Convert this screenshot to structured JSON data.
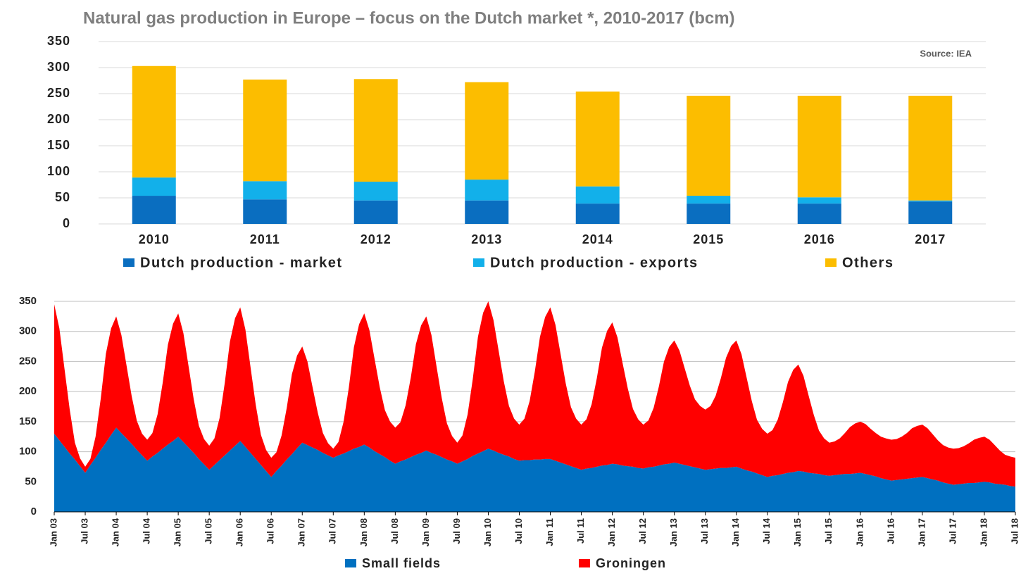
{
  "chart_data": [
    {
      "type": "bar",
      "stacked": true,
      "title": "Natural gas production in Europe – focus on the Dutch market *, 2010-2017 (bcm)",
      "annotation": "Source: IEA",
      "categories": [
        "2010",
        "2011",
        "2012",
        "2013",
        "2014",
        "2015",
        "2016",
        "2017"
      ],
      "series": [
        {
          "name": "Dutch production - market",
          "color": "#0a6ec0",
          "values": [
            54,
            47,
            45,
            45,
            39,
            39,
            39,
            43
          ]
        },
        {
          "name": "Dutch production - exports",
          "color": "#12b0ea",
          "values": [
            35,
            35,
            36,
            40,
            33,
            15,
            12,
            2
          ]
        },
        {
          "name": "Others",
          "color": "#fcbd00",
          "values": [
            214,
            195,
            197,
            187,
            182,
            192,
            195,
            201
          ]
        }
      ],
      "ylim": [
        0,
        350
      ],
      "yticks": [
        0,
        50,
        100,
        150,
        200,
        250,
        300,
        350
      ],
      "grid": true
    },
    {
      "type": "area",
      "stacked": true,
      "categories": [
        "Jan 03",
        null,
        null,
        null,
        null,
        null,
        "Jul 03",
        null,
        null,
        null,
        null,
        null,
        "Jan 04",
        null,
        null,
        null,
        null,
        null,
        "Jul 04",
        null,
        null,
        null,
        null,
        null,
        "Jan 05",
        null,
        null,
        null,
        null,
        null,
        "Jul 05",
        null,
        null,
        null,
        null,
        null,
        "Jan 06",
        null,
        null,
        null,
        null,
        null,
        "Jul 06",
        null,
        null,
        null,
        null,
        null,
        "Jan 07",
        null,
        null,
        null,
        null,
        null,
        "Jul 07",
        null,
        null,
        null,
        null,
        null,
        "Jan 08",
        null,
        null,
        null,
        null,
        null,
        "Jul 08",
        null,
        null,
        null,
        null,
        null,
        "Jan 09",
        null,
        null,
        null,
        null,
        null,
        "Jul 09",
        null,
        null,
        null,
        null,
        null,
        "Jan 10",
        null,
        null,
        null,
        null,
        null,
        "Jul 10",
        null,
        null,
        null,
        null,
        null,
        "Jan 11",
        null,
        null,
        null,
        null,
        null,
        "Jul 11",
        null,
        null,
        null,
        null,
        null,
        "Jan 12",
        null,
        null,
        null,
        null,
        null,
        "Jul 12",
        null,
        null,
        null,
        null,
        null,
        "Jan 13",
        null,
        null,
        null,
        null,
        null,
        "Jul 13",
        null,
        null,
        null,
        null,
        null,
        "Jan 14",
        null,
        null,
        null,
        null,
        null,
        "Jul 14",
        null,
        null,
        null,
        null,
        null,
        "Jan 15",
        null,
        null,
        null,
        null,
        null,
        "Jul 15",
        null,
        null,
        null,
        null,
        null,
        "Jan 16",
        null,
        null,
        null,
        null,
        null,
        "Jul 16",
        null,
        null,
        null,
        null,
        null,
        "Jan 17",
        null,
        null,
        null,
        null,
        null,
        "Jul 17",
        null,
        null,
        null,
        null,
        null,
        "Jan 18",
        null,
        null,
        null,
        null,
        null,
        "Jul 18"
      ],
      "series": [
        {
          "name": "Small fields",
          "color": "#0070c0",
          "values": [
            130,
            119,
            108,
            97,
            87,
            76,
            65,
            78,
            90,
            103,
            115,
            128,
            140,
            131,
            122,
            113,
            103,
            94,
            85,
            92,
            98,
            105,
            112,
            118,
            125,
            116,
            107,
            98,
            88,
            79,
            70,
            78,
            86,
            94,
            102,
            110,
            118,
            108,
            98,
            88,
            78,
            68,
            58,
            68,
            77,
            87,
            96,
            106,
            115,
            111,
            107,
            103,
            98,
            94,
            90,
            94,
            97,
            101,
            105,
            108,
            112,
            107,
            101,
            96,
            91,
            85,
            80,
            84,
            87,
            91,
            95,
            98,
            102,
            98,
            95,
            91,
            87,
            84,
            80,
            84,
            88,
            93,
            97,
            101,
            105,
            102,
            98,
            95,
            92,
            88,
            85,
            86,
            86,
            87,
            87,
            88,
            88,
            85,
            82,
            79,
            76,
            73,
            70,
            72,
            73,
            75,
            77,
            78,
            80,
            79,
            77,
            76,
            75,
            73,
            72,
            74,
            75,
            77,
            79,
            80,
            82,
            80,
            78,
            76,
            74,
            72,
            70,
            71,
            72,
            73,
            73,
            74,
            75,
            72,
            69,
            67,
            64,
            61,
            58,
            60,
            61,
            63,
            65,
            66,
            68,
            67,
            65,
            64,
            63,
            61,
            60,
            61,
            62,
            63,
            63,
            64,
            65,
            63,
            61,
            59,
            56,
            54,
            52,
            53,
            54,
            55,
            56,
            57,
            58,
            56,
            54,
            52,
            49,
            47,
            45,
            46,
            47,
            48,
            48,
            49,
            50,
            49,
            47,
            46,
            45,
            43,
            42
          ]
        },
        {
          "name": "Groningen",
          "color": "#ff0000",
          "values": [
            215,
            186,
            129,
            73,
            28,
            13,
            10,
            10,
            35,
            85,
            148,
            177,
            185,
            163,
            121,
            79,
            48,
            36,
            35,
            39,
            64,
            110,
            166,
            195,
            205,
            181,
            135,
            89,
            55,
            42,
            40,
            44,
            70,
            120,
            181,
            212,
            222,
            195,
            142,
            90,
            50,
            35,
            32,
            31,
            50,
            86,
            133,
            154,
            160,
            139,
            100,
            62,
            33,
            20,
            15,
            22,
            53,
            105,
            169,
            204,
            218,
            195,
            153,
            111,
            78,
            65,
            60,
            65,
            90,
            132,
            184,
            212,
            223,
            196,
            146,
            98,
            60,
            42,
            35,
            43,
            74,
            128,
            194,
            230,
            245,
            217,
            170,
            122,
            84,
            67,
            60,
            69,
            98,
            146,
            204,
            236,
            252,
            226,
            180,
            134,
            98,
            82,
            75,
            82,
            106,
            147,
            196,
            223,
            235,
            211,
            170,
            129,
            96,
            81,
            73,
            78,
            98,
            131,
            171,
            194,
            203,
            188,
            161,
            134,
            113,
            104,
            100,
            105,
            121,
            149,
            183,
            202,
            210,
            190,
            154,
            117,
            89,
            77,
            72,
            76,
            92,
            119,
            151,
            170,
            177,
            159,
            128,
            97,
            72,
            61,
            55,
            56,
            60,
            68,
            78,
            83,
            85,
            83,
            77,
            72,
            69,
            68,
            68,
            68,
            71,
            76,
            83,
            86,
            87,
            83,
            75,
            67,
            62,
            60,
            60,
            60,
            62,
            66,
            72,
            74,
            75,
            71,
            64,
            56,
            50,
            49,
            48
          ]
        }
      ],
      "ylim": [
        0,
        350
      ],
      "yticks": [
        0,
        50,
        100,
        150,
        200,
        250,
        300,
        350
      ],
      "grid": true
    }
  ]
}
